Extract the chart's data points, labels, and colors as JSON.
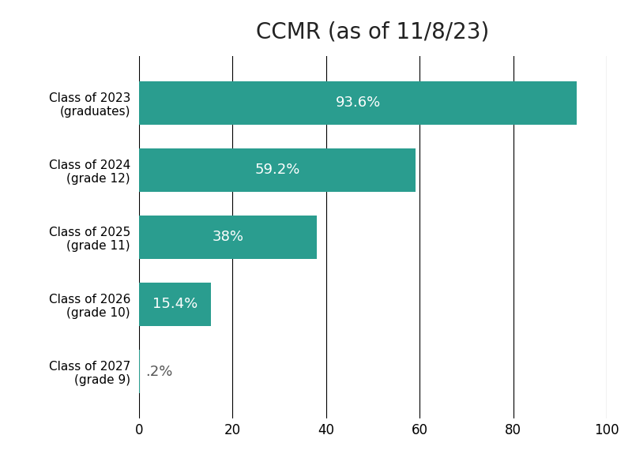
{
  "title": "CCMR (as of 11/8/23)",
  "categories": [
    "Class of 2027\n(grade 9)",
    "Class of 2026\n(grade 10)",
    "Class of 2025\n(grade 11)",
    "Class of 2024\n(grade 12)",
    "Class of 2023\n(graduates)"
  ],
  "values": [
    0.2,
    15.4,
    38.0,
    59.2,
    93.6
  ],
  "labels": [
    ".2%",
    "15.4%",
    "38%",
    "59.2%",
    "93.6%"
  ],
  "bar_color": "#2a9d8f",
  "text_color_inside": "#ffffff",
  "text_color_outside": "#555555",
  "background_color": "#ffffff",
  "title_fontsize": 20,
  "label_fontsize": 13,
  "tick_label_fontsize": 12,
  "category_fontsize": 11,
  "xlim": [
    0,
    100
  ],
  "xticks": [
    0,
    20,
    40,
    60,
    80,
    100
  ],
  "grid_color": "#000000",
  "grid_linewidth": 0.8,
  "bar_height": 0.65
}
